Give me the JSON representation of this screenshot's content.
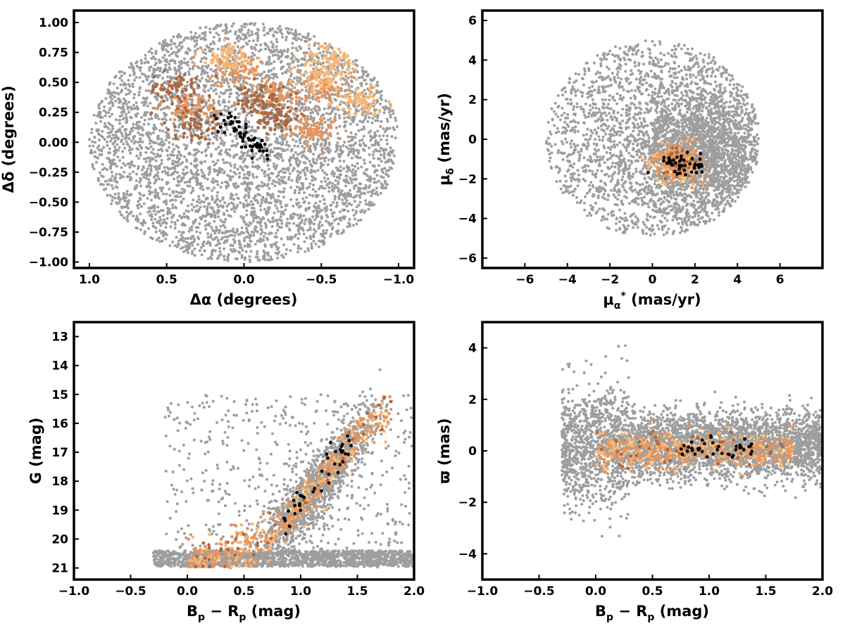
{
  "chart_data": [
    {
      "id": "sky",
      "type": "scatter",
      "xlabel": "Δα (degrees)",
      "ylabel": "Δδ (degrees)",
      "xlim": [
        1.1,
        -1.1
      ],
      "ylim": [
        -1.05,
        1.1
      ],
      "x_inverted": true,
      "xticks": [
        1.0,
        0.5,
        0.0,
        -0.5,
        -1.0
      ],
      "xtick_labels": [
        "1.0",
        "0.5",
        "0.0",
        "−0.5",
        "−1.0"
      ],
      "yticks": [
        -1.0,
        -0.75,
        -0.5,
        -0.25,
        0.0,
        0.25,
        0.5,
        0.75,
        1.0
      ],
      "ytick_labels": [
        "−1.00",
        "−0.75",
        "−0.50",
        "−0.25",
        "0.00",
        "0.25",
        "0.50",
        "0.75",
        "1.00"
      ],
      "field_distribution": "uniform disk of radius 1.0 deg centered at (0, 0)",
      "groups": [
        {
          "color": "#9e9e9e",
          "role": "field",
          "approx_count": 4200
        },
        {
          "color": "#e8955c",
          "role": "member-mid",
          "centers": [
            [
              0.05,
              0.6
            ],
            [
              -0.2,
              0.4
            ],
            [
              0.35,
              0.3
            ],
            [
              -0.45,
              0.1
            ],
            [
              -0.5,
              0.45
            ]
          ]
        },
        {
          "color": "#f7b876",
          "role": "member-light",
          "centers": [
            [
              -0.6,
              0.7
            ],
            [
              -0.5,
              0.55
            ],
            [
              -0.75,
              0.35
            ],
            [
              0.1,
              0.7
            ]
          ]
        },
        {
          "color": "#a86a46",
          "role": "member-dark",
          "centers": [
            [
              -0.2,
              0.2
            ],
            [
              0.3,
              0.15
            ],
            [
              0.45,
              0.45
            ],
            [
              -0.1,
              0.35
            ]
          ]
        },
        {
          "color": "#000000",
          "role": "core",
          "centers": [
            [
              0.0,
              0.0
            ]
          ]
        }
      ],
      "grid": false
    },
    {
      "id": "pm",
      "type": "scatter",
      "xlabel": "μ_α* (mas/yr)",
      "ylabel": "μ_δ (mas/yr)",
      "xlim": [
        -8,
        8
      ],
      "ylim": [
        -6.5,
        6.5
      ],
      "xticks": [
        -6,
        -4,
        -2,
        0,
        2,
        4,
        6
      ],
      "xtick_labels": [
        "−6",
        "−4",
        "−2",
        "0",
        "2",
        "4",
        "6"
      ],
      "yticks": [
        -6,
        -4,
        -2,
        0,
        2,
        4,
        6
      ],
      "ytick_labels": [
        "−6",
        "−4",
        "−2",
        "0",
        "2",
        "4",
        "6"
      ],
      "field_distribution": "disk of radius ~5 mas/yr centered near (0, 0), denser on the positive μα side",
      "member_center": [
        1.2,
        -1.2
      ],
      "groups": [
        {
          "color": "#9e9e9e",
          "role": "field",
          "approx_count": 4000
        },
        {
          "color": "#f7b876",
          "role": "member-light"
        },
        {
          "color": "#e8955c",
          "role": "member-mid"
        },
        {
          "color": "#a86a46",
          "role": "member-dark"
        },
        {
          "color": "#000000",
          "role": "core"
        }
      ],
      "grid": false
    },
    {
      "id": "cmd",
      "type": "scatter",
      "xlabel": "B_p − R_p (mag)",
      "ylabel": "G (mag)",
      "xlim": [
        -1.0,
        2.0
      ],
      "ylim": [
        21.4,
        12.5
      ],
      "y_inverted": true,
      "xticks": [
        -1.0,
        -0.5,
        0.0,
        0.5,
        1.0,
        1.5,
        2.0
      ],
      "xtick_labels": [
        "−1.0",
        "−0.5",
        "0.0",
        "0.5",
        "1.0",
        "1.5",
        "2.0"
      ],
      "yticks": [
        13,
        14,
        15,
        16,
        17,
        18,
        19,
        20,
        21
      ],
      "ytick_labels": [
        "13",
        "14",
        "15",
        "16",
        "17",
        "18",
        "19",
        "20",
        "21"
      ],
      "sequence": [
        [
          0.0,
          20.8
        ],
        [
          0.5,
          20.4
        ],
        [
          0.9,
          19.3
        ],
        [
          1.1,
          18.5
        ],
        [
          1.3,
          17.5
        ],
        [
          1.5,
          16.5
        ],
        [
          1.7,
          15.7
        ]
      ],
      "field_magnitude_limit": 21.0,
      "groups": [
        {
          "color": "#9e9e9e",
          "role": "field",
          "approx_count": 3500
        },
        {
          "color": "#f7b876",
          "role": "member-light"
        },
        {
          "color": "#e8955c",
          "role": "member-mid"
        },
        {
          "color": "#a86a46",
          "role": "member-dark"
        },
        {
          "color": "#000000",
          "role": "core"
        }
      ],
      "grid": false
    },
    {
      "id": "plx",
      "type": "scatter",
      "xlabel": "B_p − R_p (mag)",
      "ylabel": "ϖ (mas)",
      "xlim": [
        -1.0,
        2.0
      ],
      "ylim": [
        -5.0,
        5.0
      ],
      "xticks": [
        -1.0,
        -0.5,
        0.0,
        0.5,
        1.0,
        1.5,
        2.0
      ],
      "xtick_labels": [
        "−1.0",
        "−0.5",
        "0.0",
        "0.5",
        "1.0",
        "1.5",
        "2.0"
      ],
      "yticks": [
        -4,
        -2,
        0,
        2,
        4
      ],
      "ytick_labels": [
        "−4",
        "−2",
        "0",
        "2",
        "4"
      ],
      "field_distribution": "horizontal band around ϖ ≈ 0.2 mas spanning color −0.3 to 2.0, scatter ~0.8 mas",
      "groups": [
        {
          "color": "#9e9e9e",
          "role": "field",
          "approx_count": 4000
        },
        {
          "color": "#f7b876",
          "role": "member-light"
        },
        {
          "color": "#e8955c",
          "role": "member-mid"
        },
        {
          "color": "#a86a46",
          "role": "member-dark"
        },
        {
          "color": "#000000",
          "role": "core"
        }
      ],
      "grid": false
    }
  ]
}
